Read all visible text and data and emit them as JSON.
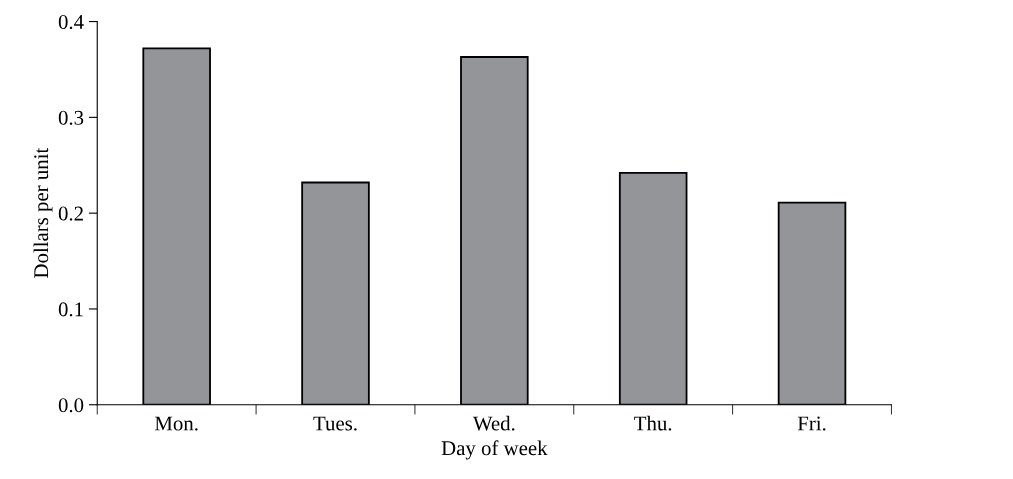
{
  "chart_data": {
    "type": "bar",
    "xlabel": "Day of week",
    "ylabel": "Dollars per unit",
    "categories": [
      "Mon.",
      "Tues.",
      "Wed.",
      "Thu.",
      "Fri."
    ],
    "values": [
      0.372,
      0.232,
      0.363,
      0.242,
      0.211
    ],
    "color": "#939598",
    "ylim": [
      0,
      0.4
    ],
    "yticks": [
      {
        "value": 0,
        "label": "0.0"
      },
      {
        "value": 0.1,
        "label": "0.1"
      },
      {
        "value": 0.2,
        "label": "0.2"
      },
      {
        "value": 0.3,
        "label": "0.3"
      },
      {
        "value": 0.4,
        "label": "0.4"
      }
    ],
    "grid": false
  }
}
